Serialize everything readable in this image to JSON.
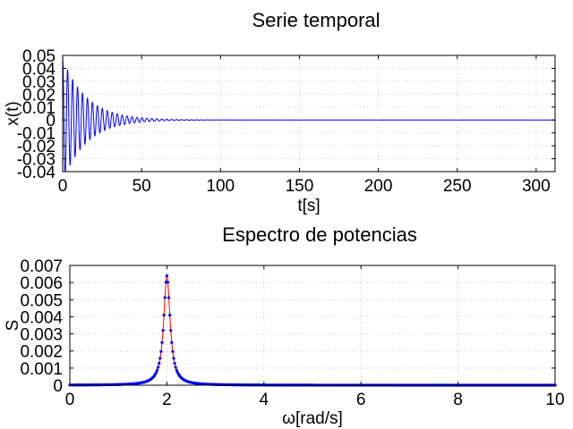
{
  "chart_data": [
    {
      "type": "line",
      "title": "Serie temporal",
      "xlabel": "t[s]",
      "ylabel": "x(t)",
      "xlim": [
        0,
        312
      ],
      "ylim": [
        -0.04,
        0.05
      ],
      "xticks": [
        "0",
        "50",
        "100",
        "150",
        "200",
        "250",
        "300"
      ],
      "yticks": [
        "-0.04",
        "-0.03",
        "-0.02",
        "-0.01",
        "0",
        "0.01",
        "0.02",
        "0.03",
        "0.04",
        "0.05"
      ],
      "grid": true,
      "series": [
        {
          "color": "#0000ff",
          "model": {
            "kind": "damped_oscillation",
            "amplitude": 0.048,
            "omega_rad_s": 2.0,
            "decay_time_s": 15,
            "t_start": 0,
            "t_end": 312
          }
        }
      ]
    },
    {
      "type": "line",
      "title": "Espectro de potencias",
      "xlabel": "ω[rad/s]",
      "ylabel": "S",
      "xlim": [
        0,
        10
      ],
      "ylim": [
        0,
        0.007
      ],
      "xticks": [
        "0",
        "2",
        "4",
        "6",
        "8",
        "10"
      ],
      "yticks": [
        "0",
        "0.001",
        "0.002",
        "0.003",
        "0.004",
        "0.005",
        "0.006",
        "0.007"
      ],
      "grid": true,
      "series": [
        {
          "style": "line",
          "color": "#ff0000",
          "model": {
            "kind": "lorentzian_peak",
            "peak_omega": 2.0,
            "peak_value": 0.0064,
            "half_width": 0.08
          }
        },
        {
          "style": "markers",
          "color": "#0000ff",
          "model": {
            "kind": "lorentzian_peak",
            "peak_omega": 2.0,
            "peak_value": 0.0064,
            "half_width": 0.08,
            "sample_step": 0.02
          }
        }
      ]
    }
  ]
}
